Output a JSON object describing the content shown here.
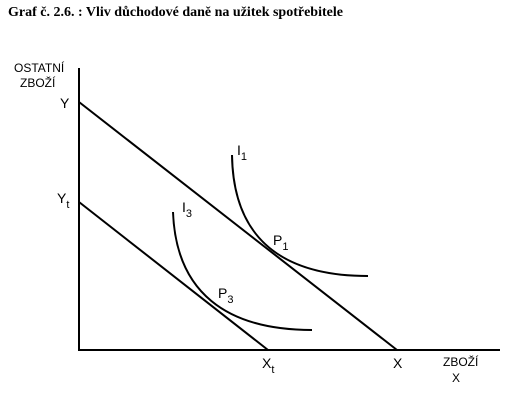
{
  "title": "Graf č. 2.6. : Vliv důchodové daně na užitek spotřebitele",
  "y_axis": {
    "label_line1": "OSTATNÍ",
    "label_line2": "ZBOŽÍ"
  },
  "x_axis": {
    "label_line1": "ZBOŽÍ",
    "label_line2": "X"
  },
  "labels": {
    "y": {
      "main": "Y"
    },
    "yt": {
      "main": "Y",
      "sub": "t"
    },
    "i1": {
      "main": "I",
      "sub": "1"
    },
    "i3": {
      "main": "I",
      "sub": "3"
    },
    "p1": {
      "main": "P",
      "sub": "1"
    },
    "p3": {
      "main": "P",
      "sub": "3"
    },
    "xt": {
      "main": "X",
      "sub": "t"
    },
    "x": {
      "main": "X"
    }
  }
}
